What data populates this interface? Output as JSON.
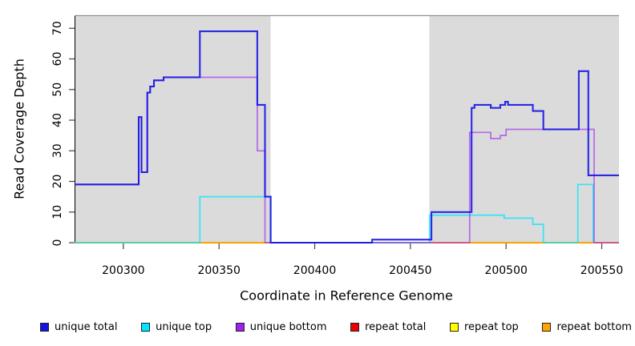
{
  "figure": {
    "background": "#ffffff",
    "panel_color": "#dbdbdb",
    "panel_top_border_color": "#8f8f8f",
    "axis_color": "#000000"
  },
  "chart_data": {
    "type": "line",
    "subtype": "step",
    "title": "",
    "xlabel": "Coordinate in Reference Genome",
    "ylabel": "Read Coverage Depth",
    "xlim": [
      200274.5,
      200559
    ],
    "ylim": [
      0,
      74
    ],
    "xticks": [
      200300,
      200350,
      200400,
      200450,
      200500,
      200550
    ],
    "yticks": [
      0,
      10,
      20,
      30,
      40,
      50,
      60,
      70
    ],
    "grid": false,
    "legend_position": "bottom",
    "shaded_regions": [
      {
        "x0": 200274.5,
        "x1": 200377
      },
      {
        "x0": 200460,
        "x1": 200559
      }
    ],
    "series": [
      {
        "name": "unique total",
        "color": "#1414e6",
        "points": [
          [
            200274.5,
            19
          ],
          [
            200308,
            19
          ],
          [
            200308,
            41
          ],
          [
            200309.5,
            41
          ],
          [
            200309.5,
            23
          ],
          [
            200312.5,
            23
          ],
          [
            200312.5,
            49
          ],
          [
            200314,
            49
          ],
          [
            200314,
            51
          ],
          [
            200316,
            51
          ],
          [
            200316,
            53
          ],
          [
            200321,
            53
          ],
          [
            200321,
            54
          ],
          [
            200340,
            54
          ],
          [
            200340,
            69
          ],
          [
            200370,
            69
          ],
          [
            200370,
            45
          ],
          [
            200374,
            45
          ],
          [
            200374,
            15
          ],
          [
            200377,
            15
          ],
          [
            200377,
            0
          ],
          [
            200430,
            0
          ],
          [
            200430,
            1
          ],
          [
            200461,
            1
          ],
          [
            200461,
            10
          ],
          [
            200482,
            10
          ],
          [
            200482,
            44
          ],
          [
            200483.5,
            44
          ],
          [
            200483.5,
            45
          ],
          [
            200492,
            45
          ],
          [
            200492,
            44
          ],
          [
            200497,
            44
          ],
          [
            200497,
            45
          ],
          [
            200499.5,
            45
          ],
          [
            200499.5,
            46
          ],
          [
            200501,
            46
          ],
          [
            200501,
            45
          ],
          [
            200514,
            45
          ],
          [
            200514,
            43
          ],
          [
            200519.5,
            43
          ],
          [
            200519.5,
            37
          ],
          [
            200538,
            37
          ],
          [
            200538,
            56
          ],
          [
            200543,
            56
          ],
          [
            200543,
            22
          ],
          [
            200559,
            22
          ]
        ]
      },
      {
        "name": "unique top",
        "color": "#00e5ff",
        "points": [
          [
            200274.5,
            0
          ],
          [
            200340,
            0
          ],
          [
            200340,
            15
          ],
          [
            200377,
            15
          ],
          [
            200377,
            0
          ],
          [
            200460,
            0
          ],
          [
            200460,
            9
          ],
          [
            200499,
            9
          ],
          [
            200499,
            8
          ],
          [
            200514,
            8
          ],
          [
            200514,
            6
          ],
          [
            200519.5,
            6
          ],
          [
            200519.5,
            0
          ],
          [
            200537.5,
            0
          ],
          [
            200537.5,
            19
          ],
          [
            200545.5,
            19
          ],
          [
            200545.5,
            0
          ]
        ]
      },
      {
        "name": "unique bottom",
        "color": "#a020f0",
        "points": [
          [
            200274.5,
            19
          ],
          [
            200308,
            19
          ],
          [
            200308,
            41
          ],
          [
            200309.5,
            41
          ],
          [
            200309.5,
            23
          ],
          [
            200312.5,
            23
          ],
          [
            200312.5,
            49
          ],
          [
            200314,
            49
          ],
          [
            200314,
            51
          ],
          [
            200316,
            51
          ],
          [
            200316,
            53
          ],
          [
            200321,
            53
          ],
          [
            200321,
            54
          ],
          [
            200370,
            54
          ],
          [
            200370,
            30
          ],
          [
            200374,
            30
          ],
          [
            200374,
            0
          ],
          [
            200481,
            0
          ],
          [
            200481,
            36
          ],
          [
            200492,
            36
          ],
          [
            200492,
            34
          ],
          [
            200497,
            34
          ],
          [
            200497,
            35
          ],
          [
            200500,
            35
          ],
          [
            200500,
            37
          ],
          [
            200546,
            37
          ],
          [
            200546,
            0
          ],
          [
            200559,
            0
          ]
        ]
      },
      {
        "name": "repeat total",
        "color": "#ee0000",
        "points": [
          [
            200274.5,
            0
          ],
          [
            200559,
            0
          ]
        ]
      },
      {
        "name": "repeat top",
        "color": "#ffff00",
        "points": [
          [
            200274.5,
            0
          ],
          [
            200559,
            0
          ]
        ]
      },
      {
        "name": "repeat bottom",
        "color": "#ffa500",
        "points": [
          [
            200274.5,
            0
          ],
          [
            200559,
            0
          ]
        ]
      }
    ]
  }
}
